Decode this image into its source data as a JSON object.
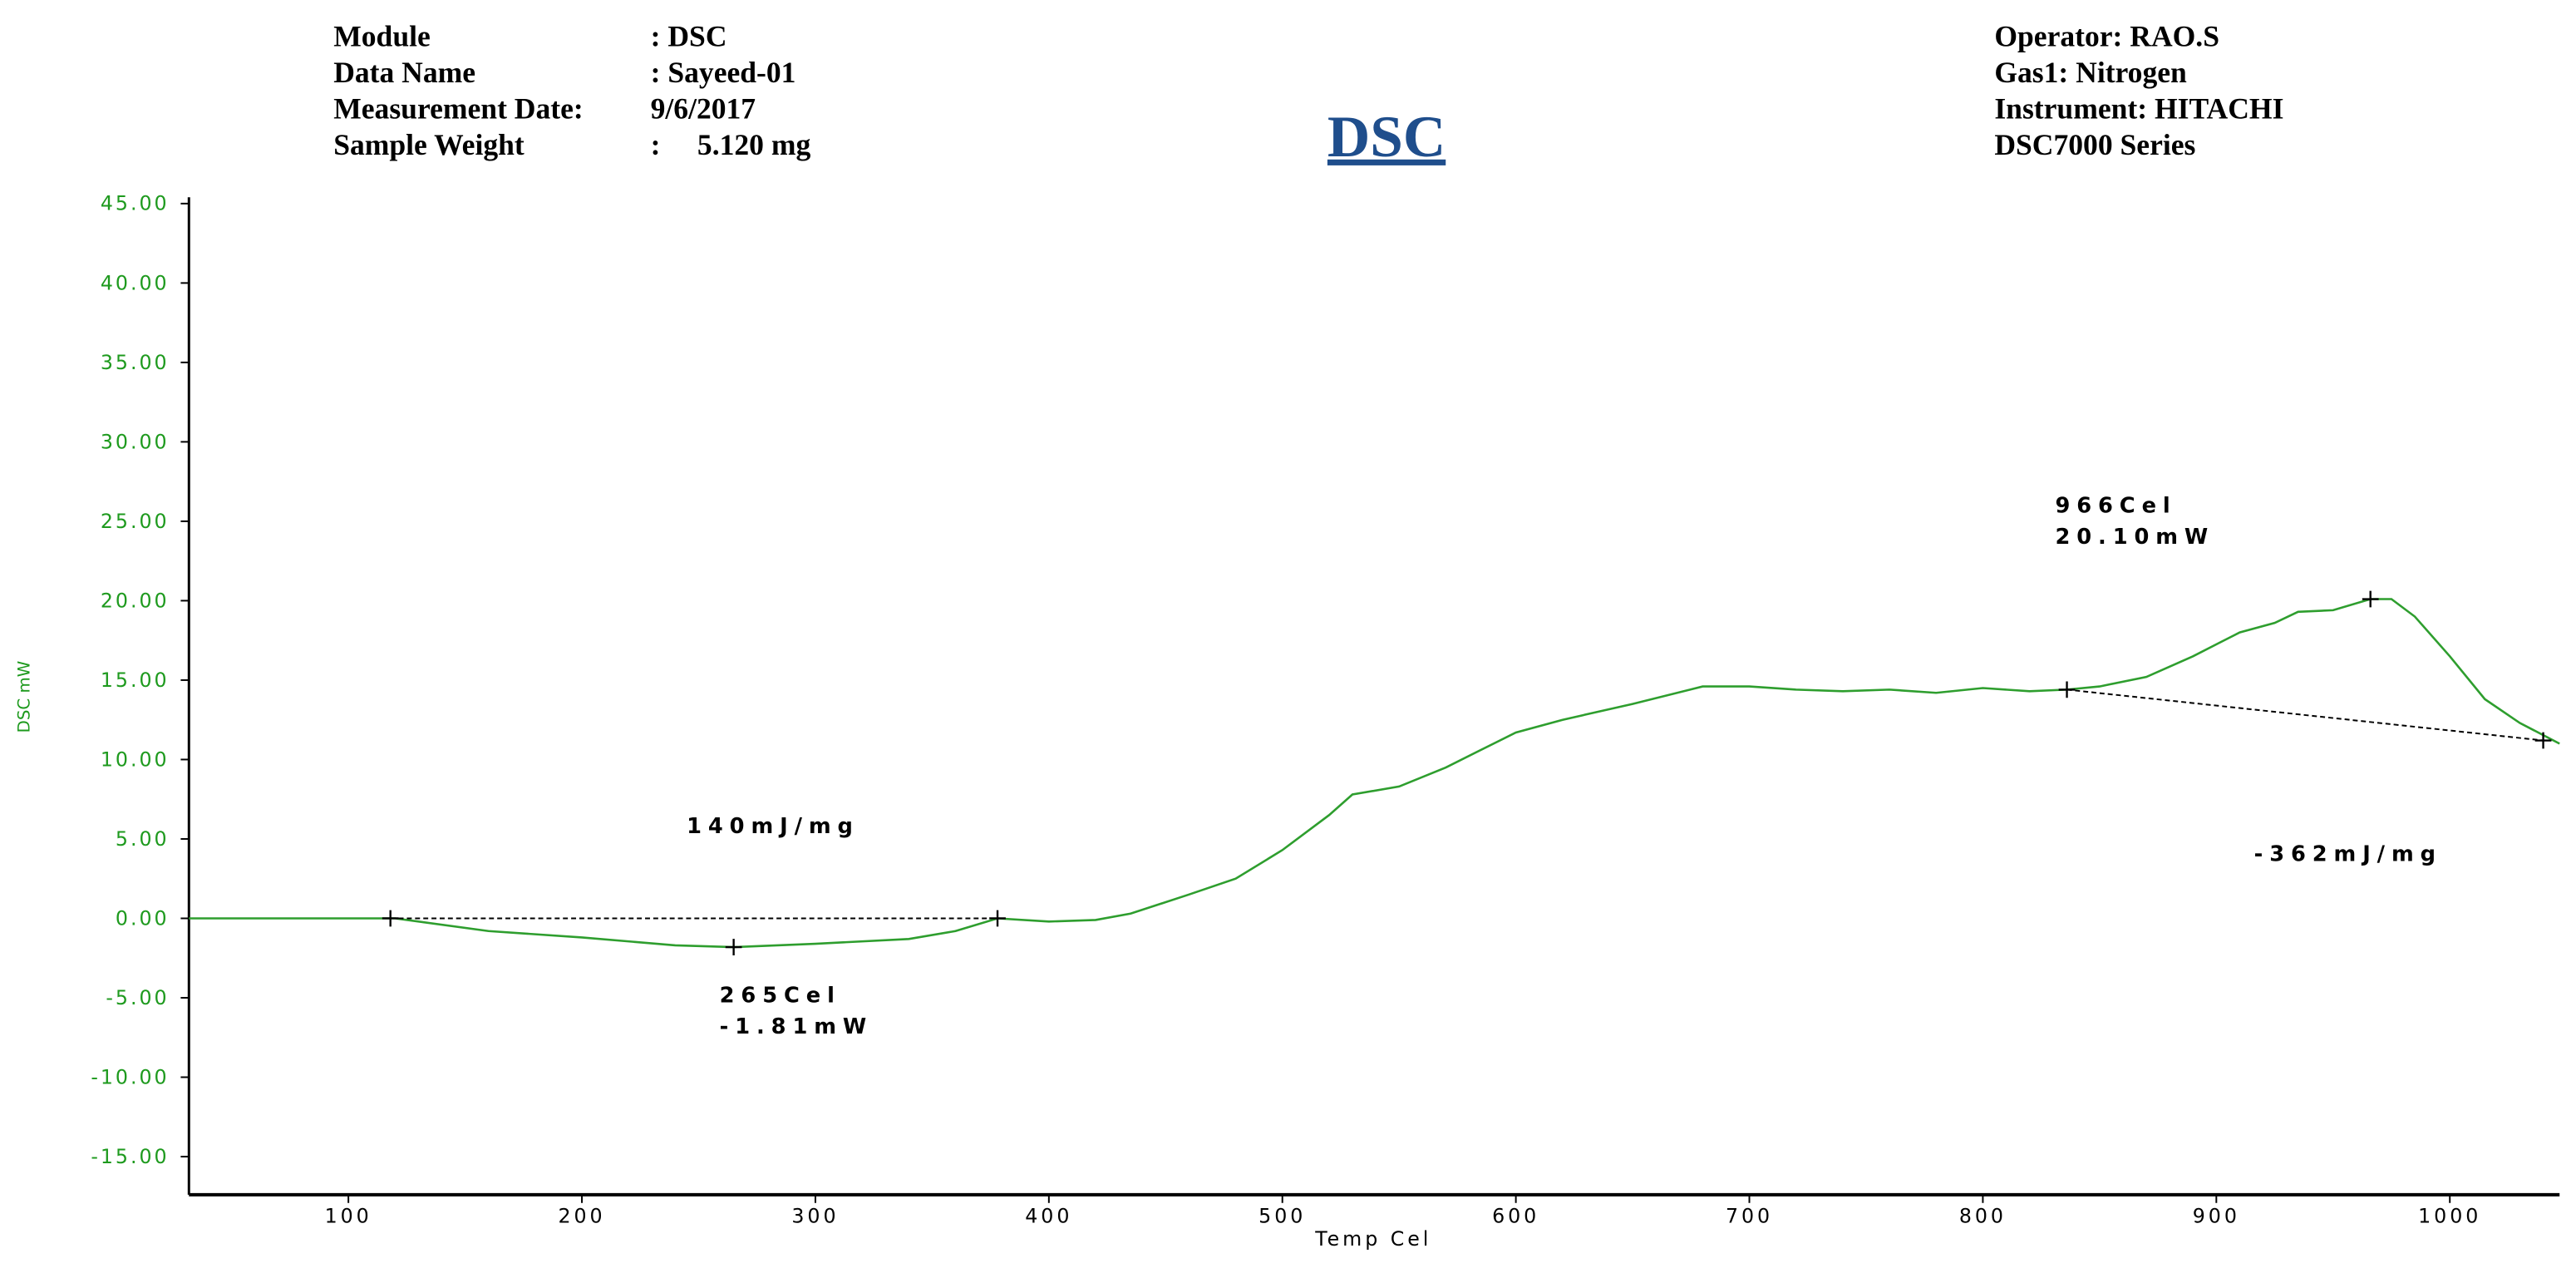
{
  "chart_data": {
    "type": "line",
    "title": "DSC",
    "info_left": [
      [
        "Module",
        ": DSC"
      ],
      [
        "Data Name",
        ": Sayeed-01"
      ],
      [
        "Measurement Date:",
        "9/6/2017"
      ],
      [
        "Sample Weight",
        ":     5.120 mg"
      ]
    ],
    "info_right": [
      "Operator: RAO.S",
      "Gas1: Nitrogen",
      "Instrument: HITACHI",
      "DSC7000 Series"
    ],
    "x_label": "Temp Cel",
    "y_label": "DSC mW",
    "xlim": [
      31.7,
      1047
    ],
    "ylim": [
      -17.4,
      45.4
    ],
    "xticks": [
      100,
      200,
      300,
      400,
      500,
      600,
      700,
      800,
      900,
      1000
    ],
    "yticks": [
      {
        "value": 45,
        "label": "45.00"
      },
      {
        "value": 40,
        "label": "40.00"
      },
      {
        "value": 35,
        "label": "35.00"
      },
      {
        "value": 30,
        "label": "30.00"
      },
      {
        "value": 25,
        "label": "25.00"
      },
      {
        "value": 20,
        "label": "20.00"
      },
      {
        "value": 15,
        "label": "15.00"
      },
      {
        "value": 10,
        "label": "10.00"
      },
      {
        "value": 5,
        "label": "5.00"
      },
      {
        "value": 0,
        "label": "0.00"
      },
      {
        "value": -5,
        "label": "-5.00"
      },
      {
        "value": -10,
        "label": "-10.00"
      },
      {
        "value": -15,
        "label": "-15.00"
      }
    ],
    "color": "#2e9e2e",
    "x": [
      31.7,
      120,
      160,
      200,
      240,
      265,
      300,
      340,
      360,
      378,
      400,
      420,
      435,
      460,
      480,
      500,
      520,
      530,
      550,
      570,
      600,
      620,
      650,
      680,
      700,
      720,
      740,
      760,
      780,
      800,
      820,
      836,
      850,
      870,
      890,
      910,
      925,
      935,
      950,
      966,
      975,
      985,
      1000,
      1015,
      1030,
      1047
    ],
    "values": [
      0,
      0,
      -0.8,
      -1.2,
      -1.7,
      -1.81,
      -1.6,
      -1.3,
      -0.8,
      0,
      -0.2,
      -0.1,
      0.3,
      1.5,
      2.5,
      4.3,
      6.5,
      7.8,
      8.3,
      9.5,
      11.7,
      12.5,
      13.5,
      14.6,
      14.6,
      14.4,
      14.3,
      14.4,
      14.2,
      14.5,
      14.3,
      14.4,
      14.6,
      15.2,
      16.5,
      18.0,
      18.6,
      19.3,
      19.4,
      20.1,
      20.1,
      19.0,
      16.5,
      13.8,
      12.3,
      11.0
    ],
    "baselines": [
      {
        "x": [
          118,
          378
        ],
        "values": [
          0,
          0
        ]
      },
      {
        "x": [
          836,
          1040
        ],
        "values": [
          14.4,
          11.2
        ]
      }
    ],
    "markers": {
      "x": [
        118,
        265,
        378,
        836,
        966,
        1040
      ],
      "values": [
        0,
        -1.81,
        0,
        14.4,
        20.1,
        11.2
      ]
    },
    "annotations": [
      "140mJ/mg",
      "265Cel",
      "-1.81mW",
      "966Cel",
      "20.10mW",
      "-362mJ/mg"
    ]
  }
}
